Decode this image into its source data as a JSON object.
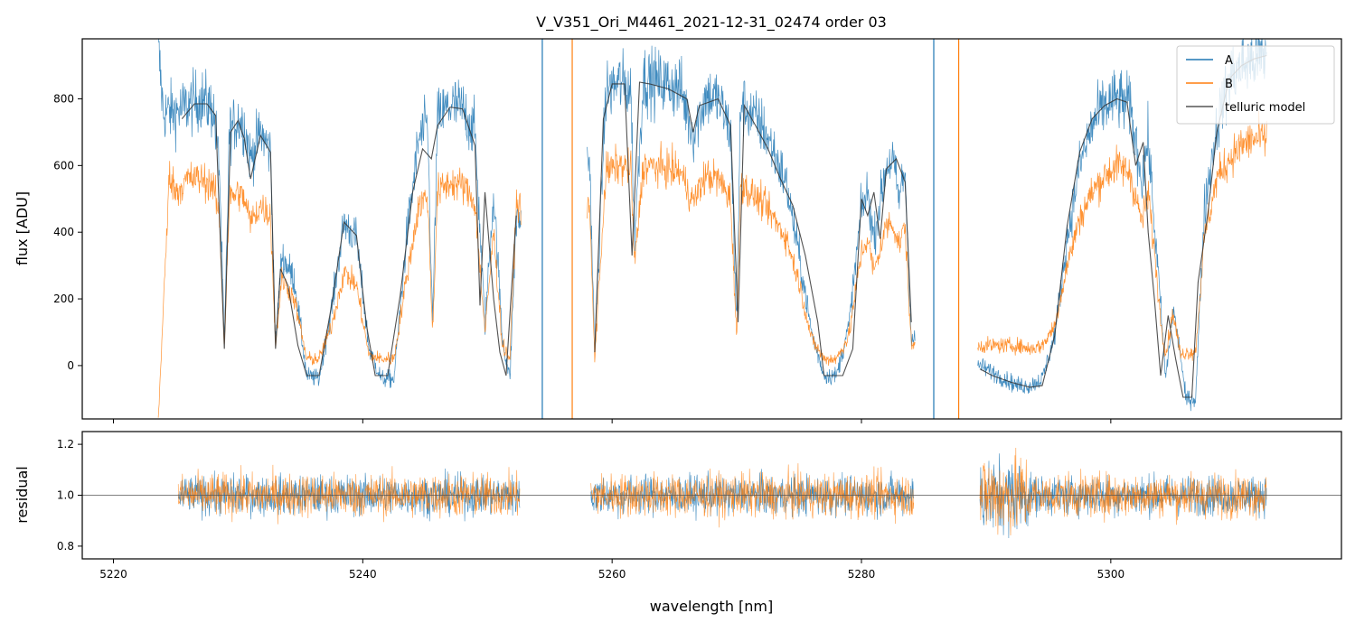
{
  "chart_data": [
    {
      "id": "flux",
      "type": "line",
      "title": "V_V351_Ori_M4461_2021-12-31_02474  order 03",
      "xlabel": "",
      "ylabel": "flux [ADU]",
      "xlim": [
        5217.5,
        5318.5
      ],
      "ylim": [
        -160,
        980
      ],
      "yticks": [
        0,
        200,
        400,
        600,
        800
      ],
      "xticks": [
        5220,
        5240,
        5260,
        5280,
        5300
      ],
      "legend": {
        "position": "top-right",
        "entries": [
          "A",
          "B",
          "telluric model"
        ]
      },
      "series": [
        {
          "name": "A",
          "color": "#1f77b4",
          "x": [
            5223.6,
            5224.0,
            5225.0,
            5226.0,
            5227.0,
            5228.0,
            5228.5,
            5228.9,
            5229.3,
            5230.0,
            5230.5,
            5231.0,
            5231.8,
            5232.6,
            5233.0,
            5233.5,
            5234.5,
            5235.5,
            5236.5,
            5237.5,
            5238.5,
            5239.5,
            5240.5,
            5241.5,
            5242.5,
            5243.5,
            5244.5,
            5245.2,
            5245.6,
            5246.0,
            5247.0,
            5248.0,
            5249.0,
            5249.8,
            5250.5,
            5251.2,
            5251.8,
            5252.3,
            5258.2,
            5258.6,
            5259.5,
            5260.5,
            5261.5,
            5261.8,
            5262.5,
            5263.5,
            5264.5,
            5265.5,
            5266.5,
            5267.5,
            5268.5,
            5269.5,
            5270.0,
            5270.3,
            5271.0,
            5272.0,
            5273.0,
            5274.0,
            5275.0,
            5276.0,
            5277.0,
            5278.0,
            5279.0,
            5280.0,
            5280.5,
            5281.0,
            5282.0,
            5282.5,
            5283.0,
            5283.5,
            5284.0,
            5289.5,
            5290.5,
            5291.5,
            5292.5,
            5293.5,
            5294.5,
            5295.5,
            5296.5,
            5297.5,
            5298.5,
            5299.5,
            5300.5,
            5301.5,
            5302.5,
            5303.0,
            5303.5,
            5304.0,
            5304.4,
            5305.0,
            5305.6,
            5306.0,
            5306.8,
            5307.5,
            5308.5,
            5309.5,
            5310.5,
            5311.5,
            5312.5
          ],
          "y": [
            950,
            760,
            760,
            780,
            800,
            770,
            600,
            60,
            700,
            740,
            720,
            620,
            700,
            640,
            60,
            330,
            260,
            -30,
            -40,
            170,
            430,
            380,
            50,
            -40,
            -40,
            380,
            680,
            720,
            120,
            740,
            780,
            770,
            700,
            120,
            520,
            80,
            -40,
            430,
            620,
            40,
            820,
            850,
            830,
            380,
            860,
            850,
            845,
            830,
            690,
            810,
            800,
            700,
            120,
            790,
            760,
            720,
            640,
            540,
            330,
            100,
            -30,
            -30,
            120,
            470,
            520,
            380,
            600,
            620,
            500,
            590,
            80,
            0,
            -20,
            -40,
            -60,
            -60,
            -40,
            90,
            380,
            600,
            720,
            780,
            800,
            780,
            560,
            680,
            420,
            180,
            -40,
            170,
            30,
            -100,
            -100,
            470,
            720,
            860,
            900,
            920,
            930
          ]
        },
        {
          "name": "B",
          "color": "#ff7f0e",
          "x": [
            5223.6,
            5224.5,
            5225.0,
            5226.0,
            5227.0,
            5228.0,
            5228.5,
            5228.9,
            5229.3,
            5230.0,
            5230.5,
            5231.0,
            5231.8,
            5232.6,
            5233.0,
            5233.5,
            5234.5,
            5235.5,
            5236.5,
            5237.5,
            5238.5,
            5239.5,
            5240.5,
            5241.5,
            5242.5,
            5243.5,
            5244.5,
            5245.2,
            5245.6,
            5246.0,
            5247.0,
            5248.0,
            5249.0,
            5249.8,
            5250.5,
            5251.2,
            5251.8,
            5252.3,
            5258.2,
            5258.6,
            5259.5,
            5260.5,
            5261.5,
            5261.8,
            5262.5,
            5263.5,
            5264.5,
            5265.5,
            5266.5,
            5267.5,
            5268.5,
            5269.5,
            5270.0,
            5270.3,
            5271.0,
            5272.0,
            5273.0,
            5274.0,
            5275.0,
            5276.0,
            5277.0,
            5278.0,
            5279.0,
            5280.0,
            5280.5,
            5281.0,
            5282.0,
            5282.5,
            5283.0,
            5283.5,
            5284.0,
            5289.5,
            5290.5,
            5291.5,
            5292.5,
            5293.5,
            5294.5,
            5295.5,
            5296.5,
            5297.5,
            5298.5,
            5299.5,
            5300.5,
            5301.5,
            5302.5,
            5303.0,
            5303.5,
            5304.0,
            5304.4,
            5305.0,
            5305.6,
            5306.0,
            5306.8,
            5307.5,
            5308.5,
            5309.5,
            5310.5,
            5311.5,
            5312.5
          ],
          "y": [
            -160,
            580,
            520,
            560,
            560,
            540,
            440,
            60,
            500,
            520,
            500,
            430,
            480,
            450,
            60,
            260,
            200,
            20,
            20,
            120,
            280,
            240,
            30,
            20,
            20,
            260,
            480,
            510,
            100,
            520,
            550,
            540,
            490,
            100,
            400,
            60,
            20,
            480,
            470,
            20,
            580,
            600,
            590,
            300,
            600,
            595,
            590,
            580,
            490,
            570,
            560,
            500,
            80,
            550,
            520,
            490,
            440,
            380,
            250,
            80,
            20,
            20,
            90,
            340,
            380,
            280,
            420,
            430,
            360,
            420,
            60,
            60,
            60,
            60,
            60,
            50,
            60,
            120,
            300,
            440,
            520,
            570,
            600,
            580,
            430,
            520,
            340,
            140,
            30,
            160,
            30,
            40,
            40,
            380,
            560,
            620,
            660,
            680,
            680
          ]
        },
        {
          "name": "telluric model",
          "color": "#333333",
          "x": [
            5225.5,
            5226.5,
            5227.5,
            5228.2,
            5228.9,
            5229.4,
            5230.0,
            5230.5,
            5231.0,
            5231.8,
            5232.6,
            5233.0,
            5233.4,
            5234.0,
            5234.8,
            5235.5,
            5236.5,
            5237.5,
            5238.5,
            5239.5,
            5240.3,
            5241.0,
            5242.0,
            5243.0,
            5244.0,
            5244.8,
            5245.5,
            5246.0,
            5247.0,
            5248.0,
            5249.0,
            5249.4,
            5249.8,
            5250.5,
            5251.0,
            5251.5,
            5252.3,
            5258.6,
            5259.3,
            5260.0,
            5261.0,
            5261.6,
            5262.2,
            5263.0,
            5264.5,
            5266.0,
            5266.5,
            5267.0,
            5268.5,
            5269.5,
            5270.1,
            5270.6,
            5271.5,
            5272.5,
            5273.5,
            5274.5,
            5275.5,
            5276.5,
            5277.0,
            5277.5,
            5278.5,
            5279.3,
            5280.0,
            5280.5,
            5281.0,
            5281.5,
            5282.0,
            5282.8,
            5283.5,
            5284.0,
            5289.5,
            5290.5,
            5292.0,
            5293.5,
            5294.5,
            5295.5,
            5296.5,
            5297.5,
            5298.5,
            5299.5,
            5300.5,
            5301.3,
            5302.0,
            5302.6,
            5303.0,
            5303.5,
            5304.0,
            5304.6,
            5305.2,
            5305.8,
            5306.5,
            5307.0,
            5307.8,
            5308.5,
            5309.5,
            5310.5,
            5311.5,
            5312.5
          ],
          "y": [
            740,
            785,
            785,
            750,
            50,
            700,
            735,
            680,
            560,
            690,
            640,
            50,
            290,
            240,
            60,
            -30,
            -30,
            180,
            430,
            390,
            120,
            -30,
            -30,
            210,
            520,
            650,
            620,
            720,
            775,
            770,
            660,
            180,
            520,
            200,
            40,
            -30,
            450,
            40,
            740,
            845,
            845,
            330,
            850,
            845,
            830,
            800,
            700,
            780,
            800,
            720,
            130,
            780,
            720,
            650,
            560,
            480,
            330,
            130,
            -30,
            -30,
            -30,
            50,
            500,
            450,
            520,
            380,
            590,
            620,
            550,
            130,
            -10,
            -30,
            -50,
            -65,
            -60,
            90,
            420,
            640,
            740,
            780,
            800,
            790,
            600,
            670,
            400,
            200,
            -30,
            150,
            20,
            -95,
            -95,
            250,
            460,
            700,
            860,
            900,
            920,
            930
          ]
        }
      ]
    },
    {
      "id": "residual",
      "type": "line",
      "title": "",
      "xlabel": "wavelength [nm]",
      "ylabel": "residual",
      "xlim": [
        5217.5,
        5318.5
      ],
      "ylim": [
        0.75,
        1.25
      ],
      "yticks": [
        0.8,
        1.0,
        1.2
      ],
      "xticks": [
        5220,
        5240,
        5260,
        5280,
        5300
      ],
      "reference_line": 1.0,
      "segments": [
        [
          5225.2,
          5252.6
        ],
        [
          5258.3,
          5284.2
        ],
        [
          5289.5,
          5312.5
        ]
      ],
      "series": [
        {
          "name": "A",
          "color": "#1f77b4",
          "center": 1.0,
          "spread": 0.1
        },
        {
          "name": "B",
          "color": "#ff7f0e",
          "center": 1.0,
          "spread": 0.11
        }
      ]
    }
  ]
}
